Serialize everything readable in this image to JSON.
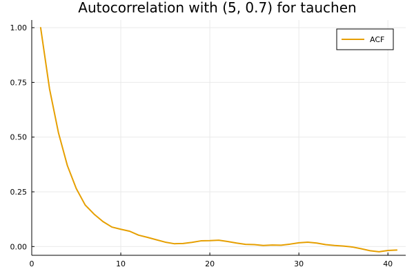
{
  "chart_data": {
    "type": "line",
    "title": "Autocorrelation with (5, 0.7) for tauchen",
    "xlabel": "",
    "ylabel": "",
    "xlim": [
      0,
      42
    ],
    "ylim": [
      -0.04,
      1.035
    ],
    "xticks": [
      0,
      10,
      20,
      30,
      40
    ],
    "yticks": [
      0.0,
      0.25,
      0.5,
      0.75,
      1.0
    ],
    "xtick_labels": [
      "0",
      "10",
      "20",
      "30",
      "40"
    ],
    "ytick_labels": [
      "0.00",
      "0.25",
      "0.50",
      "0.75",
      "1.00"
    ],
    "grid": true,
    "legend": {
      "position": "top-right"
    },
    "series": [
      {
        "name": "ACF",
        "color": "#e69f00",
        "x": [
          1,
          2,
          3,
          4,
          5,
          6,
          7,
          8,
          9,
          10,
          11,
          12,
          13,
          14,
          15,
          16,
          17,
          18,
          19,
          20,
          21,
          22,
          23,
          24,
          25,
          26,
          27,
          28,
          29,
          30,
          31,
          32,
          33,
          34,
          35,
          36,
          37,
          38,
          39,
          40,
          41
        ],
        "y": [
          1.0,
          0.72,
          0.52,
          0.37,
          0.265,
          0.19,
          0.148,
          0.114,
          0.089,
          0.079,
          0.07,
          0.052,
          0.042,
          0.031,
          0.02,
          0.013,
          0.014,
          0.019,
          0.026,
          0.027,
          0.029,
          0.023,
          0.016,
          0.01,
          0.009,
          0.005,
          0.007,
          0.006,
          0.011,
          0.017,
          0.02,
          0.016,
          0.009,
          0.005,
          0.002,
          -0.002,
          -0.01,
          -0.019,
          -0.024,
          -0.018,
          -0.016
        ]
      }
    ]
  }
}
